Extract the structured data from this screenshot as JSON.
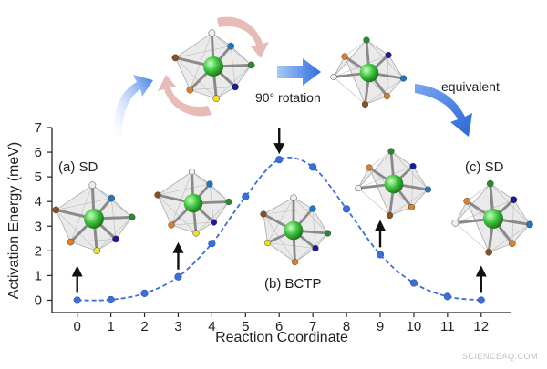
{
  "chart_data": {
    "type": "line",
    "xlabel": "Reaction Coordinate",
    "ylabel": "Activation Energy (meV)",
    "xlim": [
      -0.75,
      12.9
    ],
    "ylim": [
      -0.5,
      7
    ],
    "xticks": [
      0,
      1,
      2,
      3,
      4,
      5,
      6,
      7,
      8,
      9,
      10,
      11,
      12
    ],
    "yticks": [
      0,
      1,
      2,
      3,
      4,
      5,
      6,
      7
    ],
    "grid": false,
    "series": [
      {
        "x": [
          0,
          1,
          2,
          3,
          4,
          5,
          6,
          7,
          8,
          9,
          10,
          11,
          12
        ],
        "y": [
          0.0,
          0.02,
          0.28,
          0.95,
          2.3,
          4.2,
          5.7,
          5.4,
          3.7,
          1.85,
          0.7,
          0.15,
          0.0
        ],
        "color": "#3a6fd8",
        "line_style": "dashed",
        "marker": "circle"
      }
    ],
    "annotations": [
      "(a) SD",
      "(b) BCTP",
      "(c) SD",
      "90° rotation",
      "equivalent"
    ],
    "arrows_at_x": [
      0,
      3,
      6,
      9,
      12
    ]
  },
  "watermark": "SCIENCEAQ.COM",
  "colors": {
    "curve": "#3a6fd8",
    "axis": "#222222",
    "center_atom": "#3cc43c",
    "atom_white": "#eeeeee",
    "atom_blue": "#1a78c8",
    "atom_orange": "#e08020",
    "atom_yellow": "#f0e020",
    "atom_green": "#2a8a2a",
    "atom_navy": "#1a1a9a",
    "atom_brown": "#8a5020"
  }
}
